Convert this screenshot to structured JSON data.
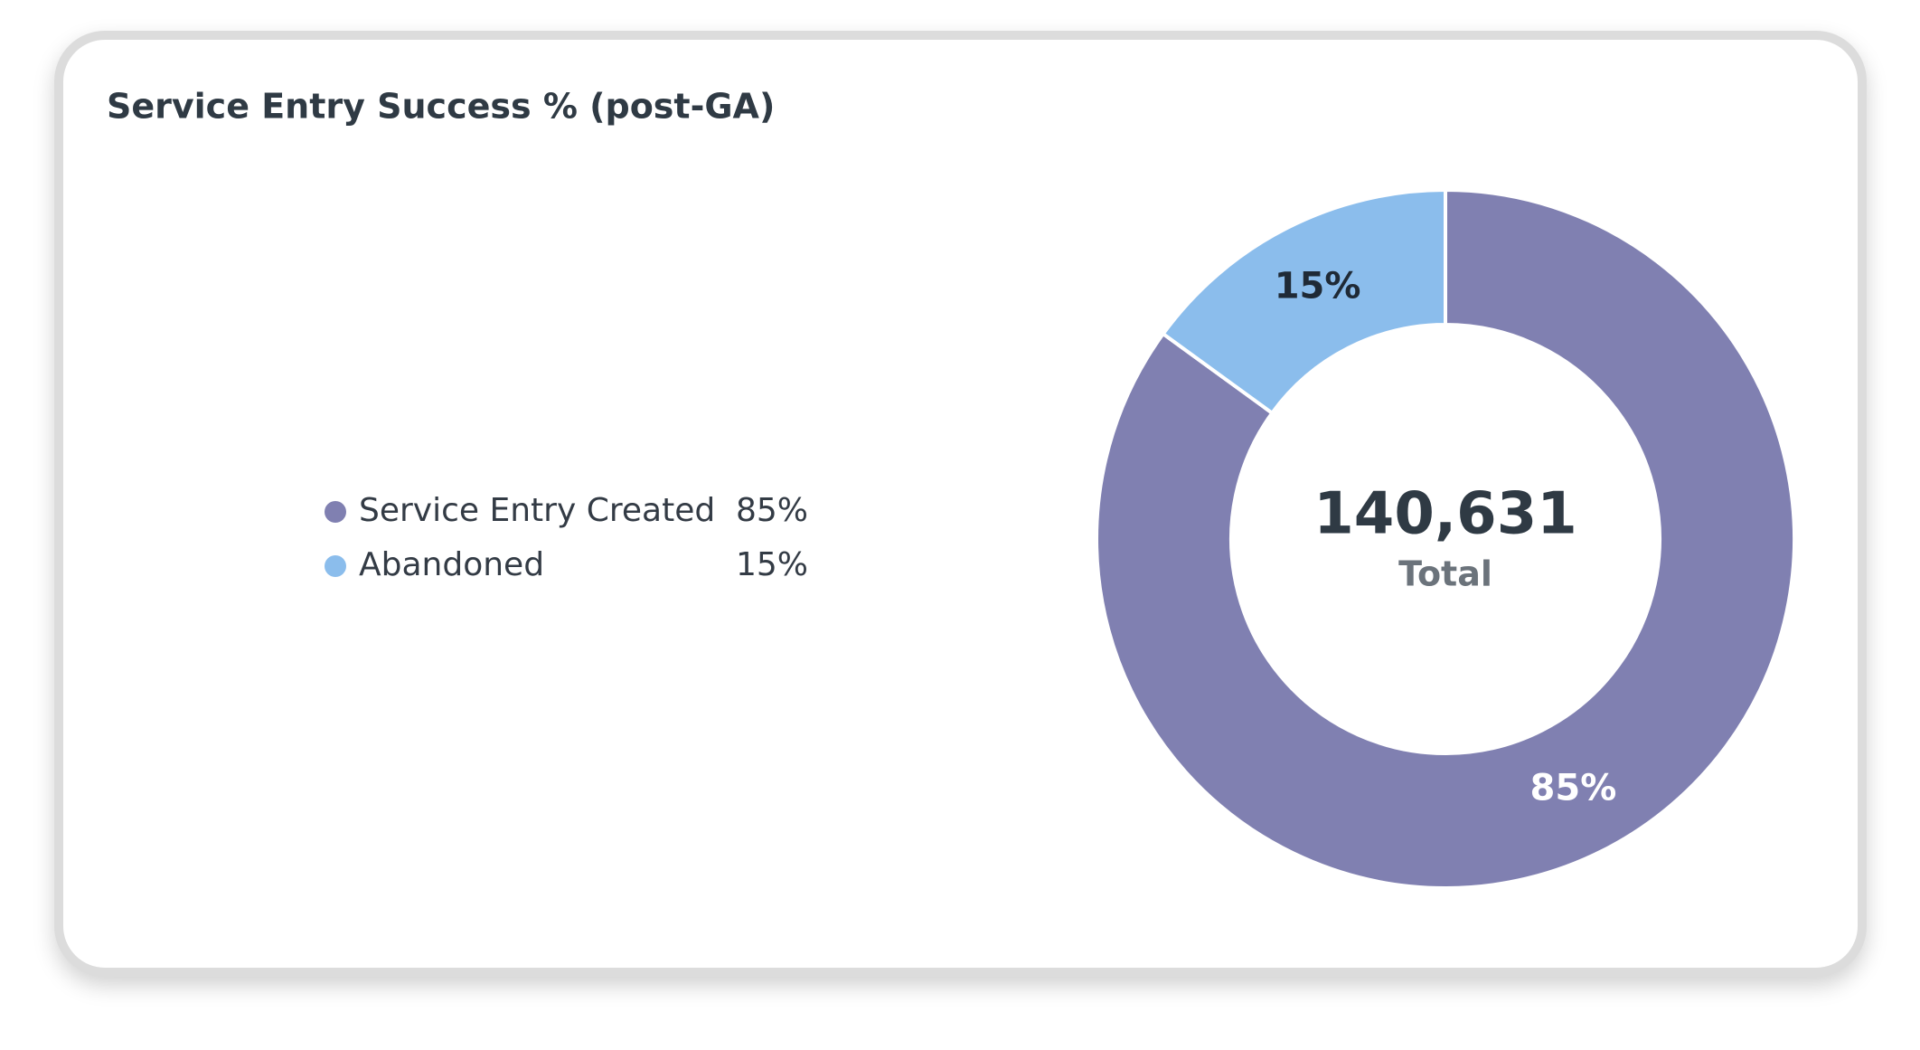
{
  "chart_data": {
    "type": "pie",
    "title": "Service Entry Success % (post-GA)",
    "categories": [
      "Service Entry Created",
      "Abandoned"
    ],
    "values": [
      85,
      15
    ],
    "value_labels": [
      "85%",
      "15%"
    ],
    "colors": [
      "#8080b1",
      "#8bbdec"
    ],
    "center_text": "140,631",
    "center_caption": "Total"
  }
}
